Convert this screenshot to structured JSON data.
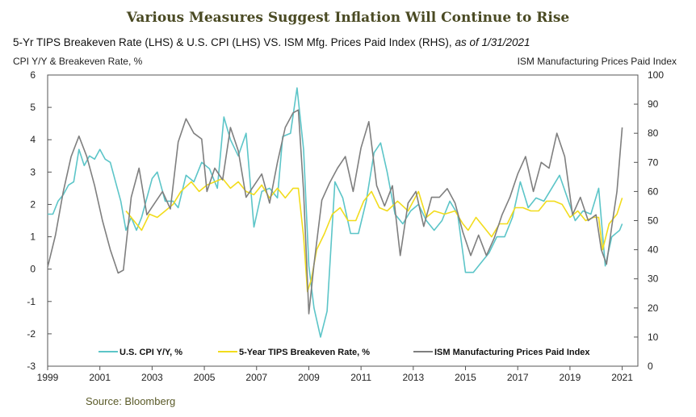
{
  "chart_data": {
    "type": "line",
    "title": "Various Measures Suggest Inflation Will Continue to Rise",
    "subtitle": "5-Yr TIPS Breakeven Rate (LHS) & U.S. CPI (LHS) VS. ISM Mfg. Prices Paid Index (RHS),",
    "subtitle_asof": "as of 1/31/2021",
    "ylabel_left": "CPI Y/Y & Breakeven Rate, %",
    "ylabel_right": "ISM Manufacturing Prices Paid Index",
    "source": "Source:  Bloomberg",
    "xlim": [
      1999,
      2021.6
    ],
    "ylim_left": [
      -3,
      6
    ],
    "ylim_right": [
      0,
      100
    ],
    "x_ticks": [
      "1999",
      "2001",
      "2003",
      "2005",
      "2007",
      "2009",
      "2011",
      "2013",
      "2015",
      "2017",
      "2019",
      "2021"
    ],
    "y_ticks_left": [
      "6",
      "5",
      "4",
      "3",
      "2",
      "1",
      "0",
      "-1",
      "-2",
      "-3"
    ],
    "y_ticks_right": [
      "100",
      "90",
      "80",
      "70",
      "60",
      "50",
      "40",
      "30",
      "20",
      "10",
      "0"
    ],
    "legend": [
      {
        "name": "U.S. CPI Y/Y, %",
        "color": "#5cc5c8"
      },
      {
        "name": "5-Year TIPS Breakeven Rate, %",
        "color": "#f2dc1c"
      },
      {
        "name": "ISM Manufacturing Prices Paid Index",
        "color": "#7f7f7f"
      }
    ],
    "series": [
      {
        "name": "U.S. CPI Y/Y, %",
        "axis": "left",
        "color": "#5cc5c8",
        "x": [
          1999.0,
          1999.2,
          1999.4,
          1999.6,
          1999.8,
          2000.0,
          2000.2,
          2000.4,
          2000.6,
          2000.8,
          2001.0,
          2001.2,
          2001.4,
          2001.6,
          2001.8,
          2002.0,
          2002.2,
          2002.4,
          2002.6,
          2002.8,
          2003.0,
          2003.2,
          2003.5,
          2003.8,
          2004.0,
          2004.3,
          2004.6,
          2004.9,
          2005.2,
          2005.5,
          2005.75,
          2006.0,
          2006.3,
          2006.6,
          2006.9,
          2007.2,
          2007.5,
          2007.8,
          2008.0,
          2008.3,
          2008.55,
          2008.8,
          2009.0,
          2009.2,
          2009.45,
          2009.7,
          2010.0,
          2010.3,
          2010.6,
          2010.9,
          2011.2,
          2011.5,
          2011.75,
          2012.0,
          2012.3,
          2012.6,
          2012.9,
          2013.2,
          2013.5,
          2013.8,
          2014.1,
          2014.4,
          2014.7,
          2015.0,
          2015.3,
          2015.6,
          2015.9,
          2016.2,
          2016.5,
          2016.8,
          2017.1,
          2017.4,
          2017.7,
          2018.0,
          2018.3,
          2018.6,
          2018.9,
          2019.2,
          2019.5,
          2019.8,
          2020.1,
          2020.35,
          2020.6,
          2020.9,
          2021.0
        ],
        "values": [
          1.7,
          1.7,
          2.1,
          2.3,
          2.6,
          2.7,
          3.7,
          3.2,
          3.5,
          3.4,
          3.7,
          3.4,
          3.3,
          2.7,
          2.1,
          1.2,
          1.6,
          1.2,
          1.6,
          2.2,
          2.8,
          3.0,
          2.1,
          2.1,
          1.9,
          2.9,
          2.7,
          3.3,
          3.1,
          2.5,
          4.7,
          4.0,
          3.5,
          4.2,
          1.3,
          2.4,
          2.5,
          2.2,
          4.1,
          4.2,
          5.6,
          3.7,
          0.1,
          -1.2,
          -2.1,
          -1.3,
          2.7,
          2.2,
          1.1,
          1.1,
          2.1,
          3.6,
          3.9,
          3.0,
          1.7,
          1.4,
          1.8,
          2.0,
          1.5,
          1.2,
          1.5,
          2.1,
          1.7,
          -0.1,
          -0.1,
          0.2,
          0.5,
          1.0,
          1.0,
          1.6,
          2.7,
          1.9,
          2.2,
          2.1,
          2.5,
          2.9,
          2.2,
          1.5,
          1.8,
          1.7,
          2.5,
          0.1,
          1.0,
          1.2,
          1.4
        ]
      },
      {
        "name": "5-Year TIPS Breakeven Rate, %",
        "axis": "left",
        "color": "#f2dc1c",
        "x": [
          2002.0,
          2002.3,
          2002.6,
          2002.9,
          2003.2,
          2003.5,
          2003.8,
          2004.1,
          2004.5,
          2004.8,
          2005.1,
          2005.4,
          2005.7,
          2006.0,
          2006.3,
          2006.6,
          2006.9,
          2007.2,
          2007.5,
          2007.8,
          2008.1,
          2008.4,
          2008.6,
          2008.8,
          2008.95,
          2009.1,
          2009.3,
          2009.6,
          2009.9,
          2010.2,
          2010.5,
          2010.8,
          2011.1,
          2011.4,
          2011.7,
          2012.0,
          2012.4,
          2012.8,
          2013.2,
          2013.5,
          2013.8,
          2014.2,
          2014.6,
          2014.9,
          2015.1,
          2015.4,
          2015.7,
          2016.0,
          2016.3,
          2016.6,
          2016.9,
          2017.2,
          2017.5,
          2017.8,
          2018.1,
          2018.4,
          2018.7,
          2019.0,
          2019.3,
          2019.6,
          2019.9,
          2020.1,
          2020.25,
          2020.5,
          2020.8,
          2021.0
        ],
        "values": [
          1.8,
          1.5,
          1.2,
          1.7,
          1.6,
          1.8,
          2.0,
          2.4,
          2.7,
          2.4,
          2.6,
          2.7,
          2.8,
          2.5,
          2.7,
          2.4,
          2.3,
          2.6,
          2.2,
          2.5,
          2.2,
          2.5,
          2.5,
          1.0,
          -0.7,
          -0.3,
          0.6,
          1.1,
          1.7,
          1.9,
          1.5,
          1.5,
          2.1,
          2.4,
          1.9,
          1.8,
          2.1,
          1.8,
          2.4,
          1.6,
          1.8,
          1.7,
          1.8,
          1.4,
          1.2,
          1.6,
          1.3,
          1.0,
          1.4,
          1.4,
          1.9,
          1.9,
          1.8,
          1.8,
          2.1,
          2.1,
          2.0,
          1.6,
          1.8,
          1.5,
          1.6,
          1.6,
          0.6,
          1.4,
          1.7,
          2.2
        ]
      },
      {
        "name": "ISM Manufacturing Prices Paid Index",
        "axis": "right",
        "color": "#7f7f7f",
        "x": [
          1999.0,
          1999.3,
          1999.6,
          1999.9,
          2000.2,
          2000.5,
          2000.8,
          2001.1,
          2001.4,
          2001.7,
          2001.9,
          2002.2,
          2002.5,
          2002.8,
          2003.1,
          2003.4,
          2003.7,
          2004.0,
          2004.3,
          2004.6,
          2004.9,
          2005.1,
          2005.4,
          2005.7,
          2006.0,
          2006.3,
          2006.6,
          2006.9,
          2007.2,
          2007.5,
          2007.8,
          2008.1,
          2008.4,
          2008.6,
          2008.8,
          2009.0,
          2009.2,
          2009.5,
          2009.8,
          2010.1,
          2010.4,
          2010.7,
          2011.0,
          2011.3,
          2011.6,
          2011.9,
          2012.2,
          2012.5,
          2012.8,
          2013.1,
          2013.4,
          2013.7,
          2014.0,
          2014.3,
          2014.6,
          2014.9,
          2015.2,
          2015.5,
          2015.8,
          2016.1,
          2016.4,
          2016.7,
          2017.0,
          2017.3,
          2017.6,
          2017.9,
          2018.2,
          2018.5,
          2018.8,
          2019.1,
          2019.4,
          2019.7,
          2020.0,
          2020.2,
          2020.4,
          2020.6,
          2020.8,
          2021.0
        ],
        "values": [
          34,
          45,
          60,
          72,
          79,
          72,
          62,
          50,
          40,
          32,
          33,
          58,
          68,
          52,
          56,
          60,
          54,
          77,
          85,
          80,
          78,
          60,
          68,
          64,
          82,
          74,
          58,
          62,
          66,
          56,
          70,
          82,
          87,
          88,
          60,
          18,
          35,
          57,
          63,
          68,
          72,
          60,
          75,
          84,
          62,
          55,
          62,
          38,
          56,
          60,
          48,
          58,
          58,
          61,
          56,
          46,
          38,
          45,
          38,
          44,
          52,
          58,
          66,
          72,
          60,
          70,
          68,
          80,
          72,
          52,
          58,
          50,
          52,
          40,
          35,
          48,
          60,
          82
        ]
      }
    ]
  }
}
